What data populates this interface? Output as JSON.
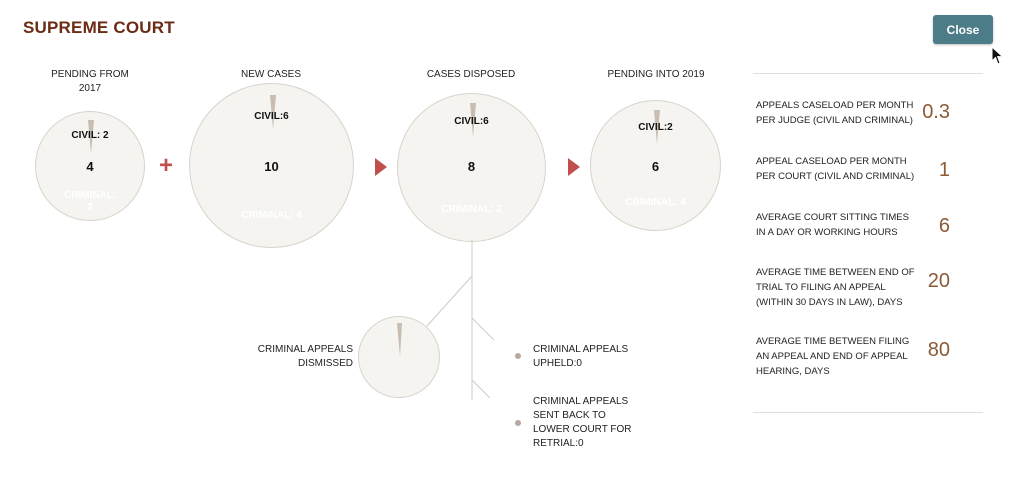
{
  "header": {
    "title": "SUPREME COURT",
    "close_label": "Close"
  },
  "stages": [
    {
      "label": "PENDING FROM 2017",
      "civil": "CIVIL: 2",
      "total": "4",
      "criminal": "CRIMINAL: 2"
    },
    {
      "label": "NEW CASES",
      "civil": "CIVIL:6",
      "total": "10",
      "criminal": "CRIMINAL: 4"
    },
    {
      "label": "CASES DISPOSED",
      "civil": "CIVIL:6",
      "total": "8",
      "criminal": "CRIMINAL: 2"
    },
    {
      "label": "PENDING INTO 2019",
      "civil": "CIVIL:2",
      "total": "6",
      "criminal": "CRIMINAL: 4"
    }
  ],
  "operators": {
    "plus": "+"
  },
  "outcomes": {
    "dismissed": "CRIMINAL APPEALS DISMISSED",
    "upheld": "CRIMINAL APPEALS UPHELD:0",
    "retrial": "CRIMINAL APPEALS SENT BACK TO LOWER COURT FOR RETRIAL:0"
  },
  "metrics": [
    {
      "label": "APPEALS CASELOAD PER MONTH PER JUDGE (CIVIL AND CRIMINAL)",
      "value": "0.3"
    },
    {
      "label": "APPEAL CASELOAD PER MONTH PER COURT (CIVIL AND CRIMINAL)",
      "value": "1"
    },
    {
      "label": "AVERAGE COURT SITTING TIMES IN A DAY OR WORKING HOURS",
      "value": "6"
    },
    {
      "label": "AVERAGE TIME BETWEEN END OF TRIAL TO FILING AN APPEAL (WITHIN 30 DAYS IN LAW), DAYS",
      "value": "20"
    },
    {
      "label": "AVERAGE TIME BETWEEN FILING AN APPEAL AND END OF APPEAL HEARING, DAYS",
      "value": "80"
    }
  ],
  "colors": {
    "title": "#6b2c16",
    "button": "#4b7c88",
    "accent": "#c0504d",
    "metric_value": "#8b5a36",
    "circle_fill": "#f6f4f0"
  }
}
